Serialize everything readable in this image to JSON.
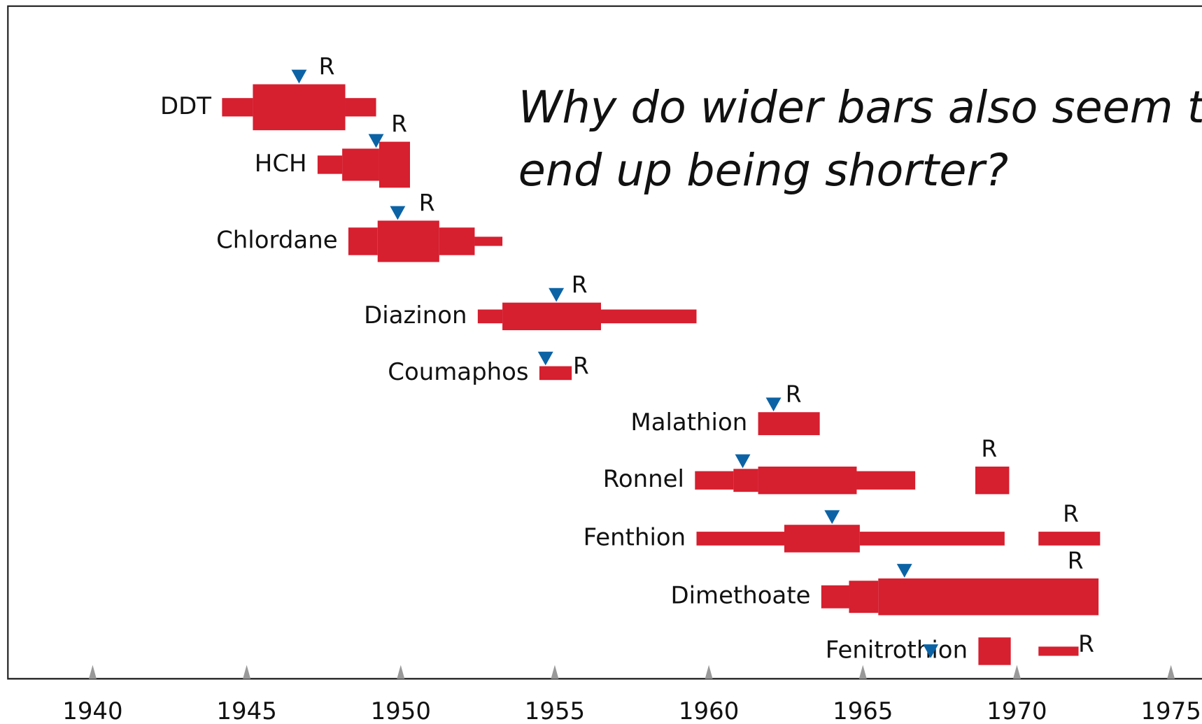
{
  "chart_data": {
    "type": "timeline",
    "annotation": [
      "Why do wider bars also seem to",
      "end up being shorter?"
    ],
    "resistance_label": "R",
    "bar_color": "#d61f2f",
    "marker_color": "#0b63a5",
    "xlim": [
      1937,
      1976
    ],
    "xticks": [
      1940,
      1945,
      1950,
      1955,
      1960,
      1965,
      1970,
      1975
    ],
    "pesticides": [
      {
        "name": "DDT",
        "introduced": 1946.7,
        "resistance": 1947.6,
        "segments": [
          {
            "start": 1944.2,
            "end": 1945.2,
            "level": 2
          },
          {
            "start": 1945.2,
            "end": 1948.2,
            "level": 5
          },
          {
            "start": 1948.2,
            "end": 1949.2,
            "level": 2
          }
        ]
      },
      {
        "name": "HCH",
        "introduced": 1949.2,
        "resistance": 1949.95,
        "segments": [
          {
            "start": 1947.3,
            "end": 1948.1,
            "level": 2
          },
          {
            "start": 1948.1,
            "end": 1949.3,
            "level": 3.5
          },
          {
            "start": 1949.3,
            "end": 1950.3,
            "level": 5
          }
        ]
      },
      {
        "name": "Chlordane",
        "introduced": 1949.9,
        "resistance": 1950.85,
        "segments": [
          {
            "start": 1948.3,
            "end": 1949.25,
            "level": 3
          },
          {
            "start": 1949.25,
            "end": 1951.25,
            "level": 4.5
          },
          {
            "start": 1951.25,
            "end": 1952.4,
            "level": 3
          },
          {
            "start": 1952.4,
            "end": 1953.3,
            "level": 1
          }
        ]
      },
      {
        "name": "Diazinon",
        "introduced": 1955.05,
        "resistance": 1955.8,
        "segments": [
          {
            "start": 1952.5,
            "end": 1953.3,
            "level": 1.5
          },
          {
            "start": 1953.3,
            "end": 1956.5,
            "level": 3
          },
          {
            "start": 1956.5,
            "end": 1959.6,
            "level": 1.5
          }
        ]
      },
      {
        "name": "Coumaphos",
        "introduced": 1954.7,
        "resistance": 1955.85,
        "segments": [
          {
            "start": 1954.5,
            "end": 1955.55,
            "level": 1.5
          }
        ]
      },
      {
        "name": "Malathion",
        "introduced": 1962.1,
        "resistance": 1962.75,
        "segments": [
          {
            "start": 1961.6,
            "end": 1963.6,
            "level": 2.5
          }
        ]
      },
      {
        "name": "Ronnel",
        "introduced": 1961.1,
        "resistance": 1969.1,
        "segments": [
          {
            "start": 1959.55,
            "end": 1960.8,
            "level": 2
          },
          {
            "start": 1960.8,
            "end": 1961.6,
            "level": 2.5
          },
          {
            "start": 1961.6,
            "end": 1964.8,
            "level": 3
          },
          {
            "start": 1964.8,
            "end": 1966.7,
            "level": 2
          },
          {
            "start": 1968.65,
            "end": 1969.75,
            "level": 3
          }
        ]
      },
      {
        "name": "Fenthion",
        "introduced": 1964,
        "resistance": 1971.75,
        "segments": [
          {
            "start": 1959.6,
            "end": 1962.45,
            "level": 1.5
          },
          {
            "start": 1962.45,
            "end": 1964.9,
            "level": 3
          },
          {
            "start": 1964.9,
            "end": 1969.6,
            "level": 1.5
          },
          {
            "start": 1970.7,
            "end": 1972.7,
            "level": 1.5
          }
        ]
      },
      {
        "name": "Dimethoate",
        "introduced": 1966.35,
        "resistance": 1971.9,
        "segments": [
          {
            "start": 1963.65,
            "end": 1964.55,
            "level": 2.5
          },
          {
            "start": 1964.55,
            "end": 1965.5,
            "level": 3.5
          },
          {
            "start": 1965.5,
            "end": 1972.65,
            "level": 4
          }
        ]
      },
      {
        "name": "Fenitrothion",
        "introduced": 1967.2,
        "resistance": 1972.25,
        "segments": [
          {
            "start": 1968.75,
            "end": 1969.8,
            "level": 3
          },
          {
            "start": 1970.7,
            "end": 1972,
            "level": 1
          }
        ]
      }
    ]
  }
}
